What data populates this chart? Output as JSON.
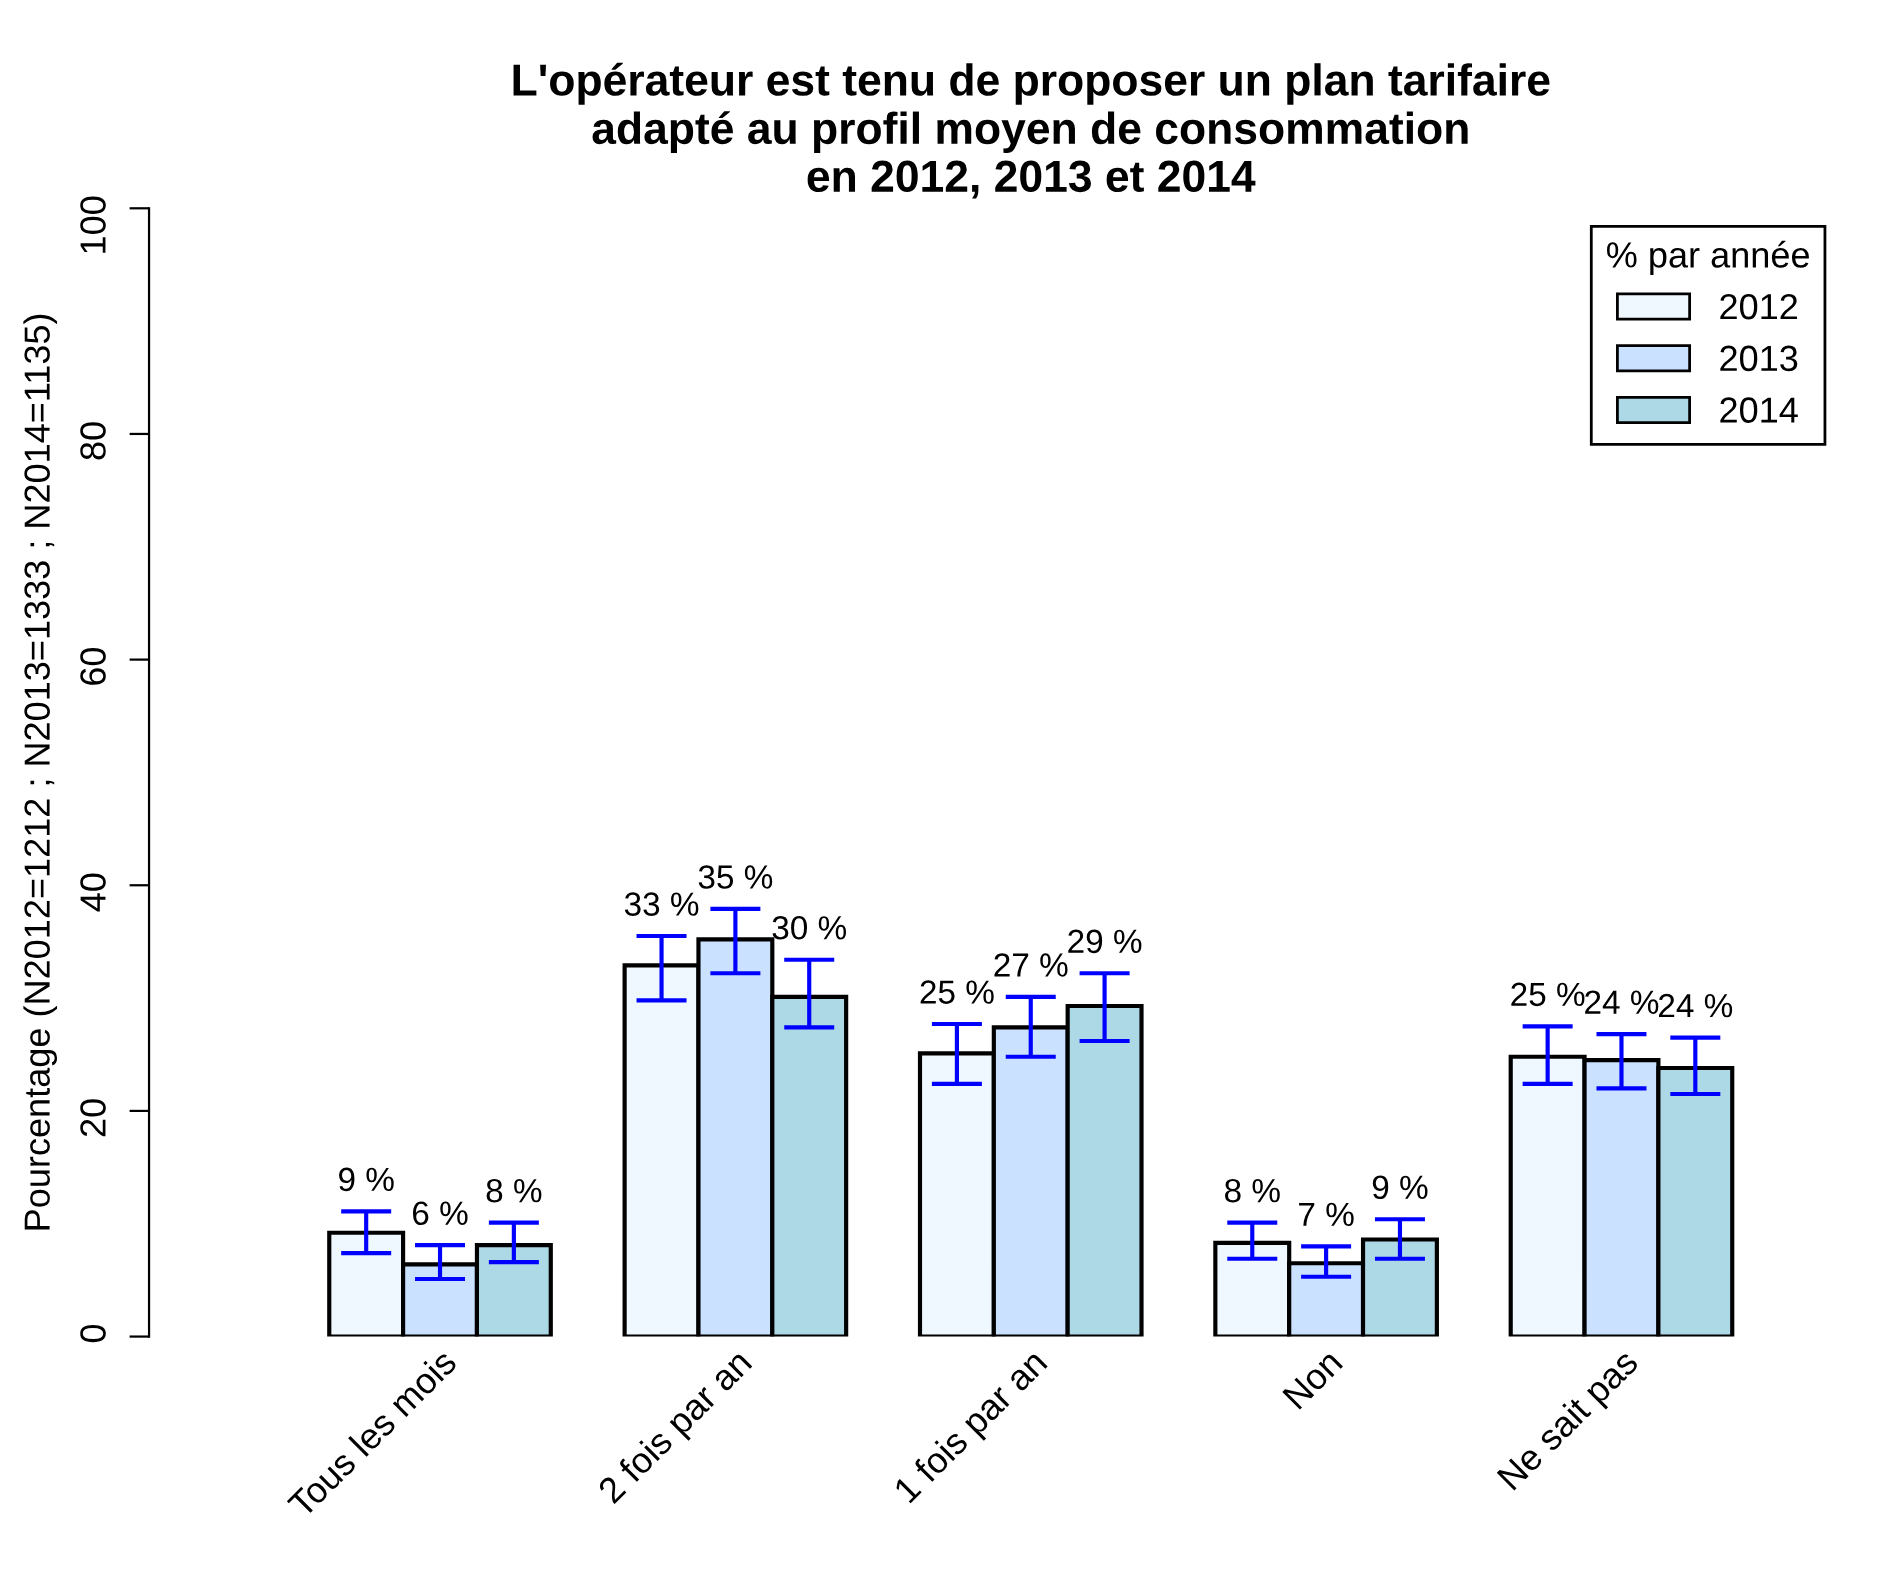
{
  "chart_data": {
    "type": "bar",
    "title": "L'opérateur est tenu de proposer un plan tarifaire\nadapté au profil moyen de consommation\nen 2012, 2013 et 2014",
    "ylabel": "Pourcentage (N2012=1212 ; N2013=1333 ; N2014=1135)",
    "legend_title": "% par année",
    "categories": [
      "Tous les mois",
      "2 fois par an",
      "1 fois par an",
      "Non",
      "Ne sait pas"
    ],
    "series": [
      {
        "name": "2012",
        "color": "#f0f8ff",
        "values": [
          9.2,
          32.9,
          25.1,
          8.3,
          24.8
        ],
        "errors": [
          [
            7.4,
            11.1
          ],
          [
            29.8,
            35.5
          ],
          [
            22.4,
            27.7
          ],
          [
            6.9,
            10.1
          ],
          [
            22.4,
            27.5
          ]
        ],
        "value_labels": [
          "9 %",
          "33 %",
          "25 %",
          "8 %",
          "25 %"
        ]
      },
      {
        "name": "2013",
        "color": "#cae1ff",
        "values": [
          6.4,
          35.2,
          27.4,
          6.5,
          24.5
        ],
        "errors": [
          [
            5.1,
            8.1
          ],
          [
            32.2,
            37.9
          ],
          [
            24.8,
            30.1
          ],
          [
            5.3,
            8.0
          ],
          [
            22.0,
            26.8
          ]
        ],
        "value_labels": [
          "6 %",
          "35 %",
          "27 %",
          "7 %",
          "24 %"
        ]
      },
      {
        "name": "2014",
        "color": "#add8e6",
        "values": [
          8.1,
          30.1,
          29.3,
          8.6,
          23.8
        ],
        "errors": [
          [
            6.6,
            10.1
          ],
          [
            27.4,
            33.4
          ],
          [
            26.2,
            32.2
          ],
          [
            6.9,
            10.4
          ],
          [
            21.5,
            26.5
          ]
        ],
        "value_labels": [
          "8 %",
          "30 %",
          "29 %",
          "9 %",
          "24 %"
        ]
      }
    ],
    "ylim": [
      0,
      100
    ],
    "yticks": [
      0,
      20,
      40,
      60,
      80,
      100
    ],
    "grid": false,
    "legend": "top right"
  }
}
